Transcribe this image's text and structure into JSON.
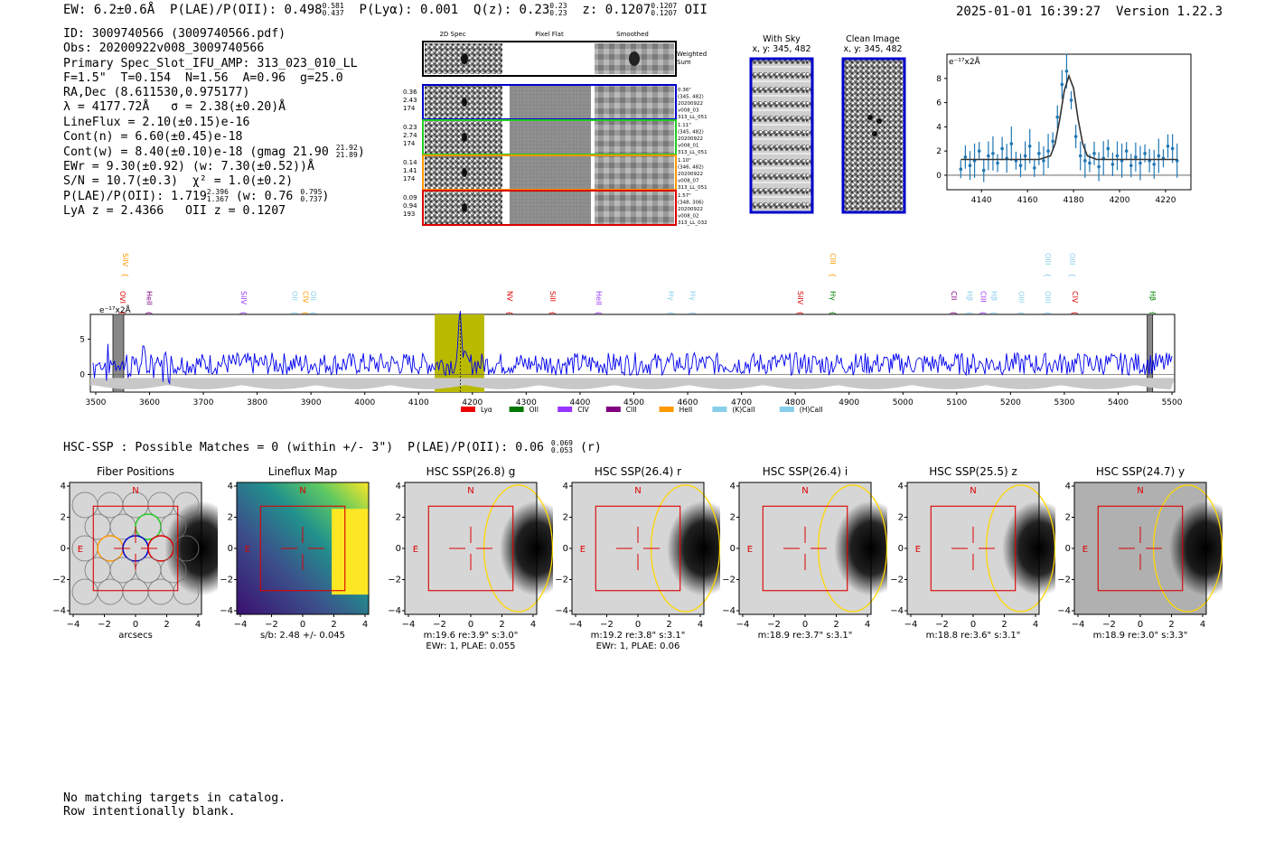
{
  "header": {
    "ew": "EW: 6.2±0.6Å",
    "plae_label": "P(LAE)/P(OII): 0.498",
    "plae_hi": "0.581",
    "plae_lo": "0.437",
    "plya": "P(Lyα): 0.001",
    "qz_label": "Q(z): 0.23",
    "qz_hi": "0.23",
    "qz_lo": "0.23",
    "z_label": "z: 0.1207",
    "z_hi": "0.1207",
    "z_lo": "0.1207",
    "z_line": "OII",
    "datetime": "2025-01-01 16:39:27",
    "version": "Version 1.22.3"
  },
  "info": {
    "id": "ID: 3009740566 (3009740566.pdf)",
    "obs": "Obs: 20200922v008_3009740566",
    "primary": "Primary Spec_Slot_IFU_AMP: 313_023_010_LL",
    "fparams": "F=1.5\"  T=0.154  N=1.56  A=0.96  g=25.0",
    "radec": "RA,Dec (8.611530,0.975177)",
    "lambda": "λ = 4177.72Å   σ = 2.38(±0.20)Å",
    "lineflux": "LineFlux = 2.10(±0.15)e-16",
    "contn": "Cont(n) = 6.60(±0.45)e-18",
    "contw": "Cont(w) = 8.40(±0.10)e-18 (gmag 21.90",
    "contw_hi": "21.92",
    "contw_lo": "21.89",
    "contw_end": ")",
    "ewr": "EWr = 9.30(±0.92) (w: 7.30(±0.52))Å",
    "sn": "S/N = 10.7(±0.3)  χ² = 1.0(±0.2)",
    "plae": "P(LAE)/P(OII): 1.719",
    "plae_hi": "2.396",
    "plae_lo": "1.367",
    "plae_w": "(w: 0.76",
    "plae_w_hi": "0.795",
    "plae_w_lo": "0.737",
    "plae_end": ")",
    "lya": "LyA z = 2.4366   OII z = 0.1207"
  },
  "cutouts": {
    "col_titles": [
      "2D Spec",
      "Pixel Flat",
      "Smoothed"
    ],
    "weighted_sum": [
      "Weighted",
      "Sum"
    ],
    "rows": [
      {
        "color": "#0000cc",
        "left": [
          "0.36",
          "2.43",
          "174"
        ],
        "right": [
          "0.36\"",
          "(345, 482)",
          "20200922",
          "v008_03",
          "313_LL_051"
        ]
      },
      {
        "color": "#22cc22",
        "left": [
          "0.23",
          "2.74",
          "174"
        ],
        "right": [
          "1.11\"",
          "(345, 482)",
          "20200922",
          "v008_01",
          "313_LL_051"
        ]
      },
      {
        "color": "#ff9900",
        "left": [
          "0.14",
          "1.41",
          "174"
        ],
        "right": [
          "1.10\"",
          "(346, 482)",
          "20200922",
          "v008_07",
          "313_LL_051"
        ]
      },
      {
        "color": "#dd0000",
        "left": [
          "0.09",
          "0.94",
          "193"
        ],
        "right": [
          "1.57\"",
          "(348, 306)",
          "20200922",
          "v008_02",
          "313_LL_032"
        ]
      }
    ]
  },
  "sky": {
    "with_sky_title": "With Sky",
    "with_sky_xy": "x, y: 345, 482",
    "clean_title": "Clean Image",
    "clean_xy": "x, y: 345, 482"
  },
  "zoom_chart": {
    "unit": "e⁻¹⁷x2Å",
    "y_ticks": [
      "0",
      "2",
      "4",
      "6",
      "8"
    ],
    "x_ticks": [
      "4140",
      "4160",
      "4180",
      "4200",
      "4220"
    ]
  },
  "chart_data": [
    {
      "type": "scatter",
      "title": "",
      "xlabel": "",
      "ylabel": "e-17x2Å",
      "xlim": [
        4125,
        4231
      ],
      "ylim": [
        -1.2,
        10
      ],
      "series": [
        {
          "name": "data",
          "x": [
            4131,
            4133,
            4135,
            4137,
            4139,
            4141,
            4143,
            4145,
            4147,
            4149,
            4151,
            4153,
            4155,
            4157,
            4159,
            4161,
            4163,
            4165,
            4167,
            4169,
            4171,
            4173,
            4175,
            4177,
            4179,
            4181,
            4183,
            4185,
            4187,
            4189,
            4191,
            4193,
            4195,
            4197,
            4199,
            4201,
            4203,
            4205,
            4207,
            4209,
            4211,
            4213,
            4215,
            4217,
            4219,
            4221,
            4223,
            4225
          ],
          "y": [
            0.5,
            1.5,
            0.8,
            1.2,
            2.0,
            0.4,
            1.6,
            1.8,
            1.0,
            2.2,
            1.4,
            2.6,
            1.2,
            0.8,
            1.6,
            2.4,
            0.6,
            1.8,
            1.2,
            2.0,
            2.8,
            4.8,
            7.5,
            8.6,
            6.2,
            3.2,
            1.6,
            1.2,
            1.0,
            1.8,
            0.7,
            1.4,
            2.2,
            0.9,
            1.6,
            1.2,
            2.0,
            0.8,
            1.5,
            1.0,
            1.8,
            1.2,
            0.9,
            1.6,
            1.4,
            2.4,
            2.2,
            1.2
          ]
        },
        {
          "name": "fit",
          "x": [
            4131,
            4165,
            4170,
            4172,
            4174,
            4176,
            4178,
            4180,
            4182,
            4184,
            4186,
            4190,
            4225
          ],
          "y": [
            1.3,
            1.3,
            1.6,
            2.6,
            4.6,
            7.0,
            8.2,
            7.2,
            4.6,
            2.6,
            1.6,
            1.3,
            1.3
          ]
        }
      ]
    },
    {
      "type": "line",
      "title": "",
      "xlabel": "",
      "ylabel": "e-17x2Å",
      "xlim": [
        3490,
        5505
      ],
      "ylim": [
        -2.5,
        8.5
      ],
      "x_ticks": [
        3500,
        3600,
        3700,
        3800,
        3900,
        4000,
        4100,
        4200,
        4300,
        4400,
        4500,
        4600,
        4700,
        4800,
        4900,
        5000,
        5100,
        5200,
        5300,
        5400,
        5500
      ],
      "y_ticks": [
        0,
        5
      ],
      "highlight_region": [
        4130,
        4222
      ],
      "emission_peak": {
        "x": 4177.72,
        "y": 7.8
      },
      "lines": [
        {
          "label": "SiIV",
          "x": 3545,
          "color": "#ff9900",
          "tier": "high"
        },
        {
          "label": "OVI",
          "x": 3540,
          "color": "#dd0000",
          "tier": "low"
        },
        {
          "label": "HeII",
          "x": 3590,
          "color": "#800080",
          "tier": "low"
        },
        {
          "label": "SiIV",
          "x": 3765,
          "color": "#9933ff",
          "tier": "low"
        },
        {
          "label": "OII",
          "x": 3860,
          "color": "#87ceeb",
          "tier": "low"
        },
        {
          "label": "CIV",
          "x": 3880,
          "color": "#ff9900",
          "tier": "low"
        },
        {
          "label": "OII",
          "x": 3895,
          "color": "#87ceeb",
          "tier": "low"
        },
        {
          "label": "NV",
          "x": 4260,
          "color": "#dd0000",
          "tier": "low"
        },
        {
          "label": "SiII",
          "x": 4340,
          "color": "#dd0000",
          "tier": "low"
        },
        {
          "label": "HeII",
          "x": 4425,
          "color": "#9933ff",
          "tier": "low"
        },
        {
          "label": "Hγ",
          "x": 4560,
          "color": "#87ceeb",
          "tier": "low"
        },
        {
          "label": "Hγ",
          "x": 4600,
          "color": "#87ceeb",
          "tier": "low"
        },
        {
          "label": "SiIV",
          "x": 4800,
          "color": "#dd0000",
          "tier": "low"
        },
        {
          "label": "CIII",
          "x": 4860,
          "color": "#ff9900",
          "tier": "high"
        },
        {
          "label": "Hγ",
          "x": 4860,
          "color": "#008000",
          "tier": "low"
        },
        {
          "label": "CII",
          "x": 5085,
          "color": "#800080",
          "tier": "low"
        },
        {
          "label": "Hβ",
          "x": 5115,
          "color": "#87ceeb",
          "tier": "low"
        },
        {
          "label": "CIII",
          "x": 5140,
          "color": "#9933ff",
          "tier": "low"
        },
        {
          "label": "Hβ",
          "x": 5160,
          "color": "#87ceeb",
          "tier": "low"
        },
        {
          "label": "OIII",
          "x": 5210,
          "color": "#87ceeb",
          "tier": "low"
        },
        {
          "label": "OIII",
          "x": 5260,
          "color": "#87ceeb",
          "tier": "high"
        },
        {
          "label": "OIII",
          "x": 5305,
          "color": "#87ceeb",
          "tier": "high"
        },
        {
          "label": "OIII",
          "x": 5260,
          "color": "#87ceeb",
          "tier": "low"
        },
        {
          "label": "CIV",
          "x": 5310,
          "color": "#dd0000",
          "tier": "low"
        },
        {
          "label": "Hβ",
          "x": 5455,
          "color": "#008000",
          "tier": "low"
        }
      ],
      "legend": [
        {
          "label": "Lyα",
          "color": "#ee0000"
        },
        {
          "label": "OII",
          "color": "#007700"
        },
        {
          "label": "CIV",
          "color": "#9933ff"
        },
        {
          "label": "CIII",
          "color": "#800080"
        },
        {
          "label": "HeII",
          "color": "#ff9900"
        },
        {
          "label": "(K)CaII",
          "color": "#87ceeb"
        },
        {
          "label": "(H)CaII",
          "color": "#87ceeb"
        }
      ]
    }
  ],
  "hsc": {
    "summary": "HSC-SSP : Possible Matches = 0 (within +/- 3\")  P(LAE)/P(OII): 0.06",
    "plae_hi": "0.069",
    "plae_lo": "0.053",
    "plae_band": "(r)",
    "tick_labels": [
      "−4",
      "−2",
      "0",
      "2",
      "4"
    ],
    "panels": [
      {
        "title": "Fiber Positions",
        "xlabel": "arcsecs",
        "line2": "",
        "dark": 0.2
      },
      {
        "title": "Lineflux Map",
        "xlabel": "s/b: 2.48 +/- 0.045",
        "line2": "",
        "dark": 0
      },
      {
        "title": "HSC SSP(26.8) g",
        "xlabel": "m:19.6  re:3.9\"  s:3.0\"",
        "line2": "EWr: 1, PLAE: 0.055",
        "dark": 0.55
      },
      {
        "title": "HSC SSP(26.4) r",
        "xlabel": "m:19.2  re:3.8\"  s:3.1\"",
        "line2": "EWr: 1, PLAE: 0.06",
        "dark": 0.85
      },
      {
        "title": "HSC SSP(26.4) i",
        "xlabel": "m:18.9  re:3.7\"  s:3.1\"",
        "line2": "",
        "dark": 0.9
      },
      {
        "title": "HSC SSP(25.5) z",
        "xlabel": "m:18.8  re:3.6\"  s:3.1\"",
        "line2": "",
        "dark": 0.8
      },
      {
        "title": "HSC SSP(24.7) y",
        "xlabel": "m:18.9  re:3.0\"  s:3.3\"",
        "line2": "",
        "dark": 0.75
      }
    ],
    "north": "N",
    "east": "E"
  },
  "footer": {
    "line1": "No matching targets in catalog.",
    "line2": "Row intentionally blank."
  }
}
